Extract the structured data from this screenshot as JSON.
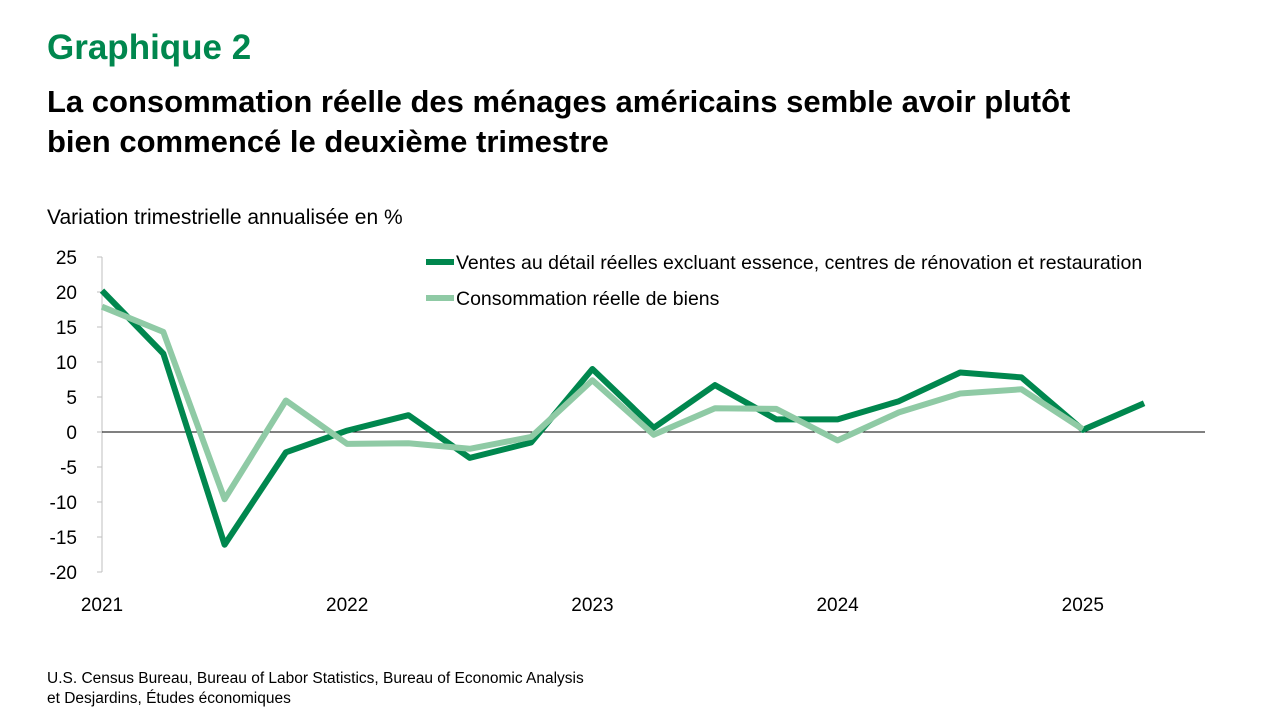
{
  "header": {
    "chart_label": "Graphique 2",
    "title_line1": "La consommation réelle des ménages américains semble avoir plutôt",
    "title_line2": "bien commencé le deuxième trimestre"
  },
  "source": {
    "line1": "U.S. Census Bureau, Bureau of Labor Statistics, Bureau of Economic Analysis",
    "line2": "et Desjardins, Études économiques"
  },
  "colors": {
    "brand": "#00874e",
    "series_dark": "#00874e",
    "series_light": "#8fcaa5",
    "axis": "#000000",
    "axis_gray": "#bfbfbf"
  },
  "chart_data": {
    "type": "line",
    "ylabel": "Variation trimestrielle annualisée en %",
    "xlabel": "",
    "ylim": [
      -20,
      25
    ],
    "yticks": [
      25,
      20,
      15,
      10,
      5,
      0,
      -5,
      -10,
      -15,
      -20
    ],
    "xticks": [
      "2021",
      "2022",
      "2023",
      "2024",
      "2025"
    ],
    "x": [
      "2021 T1",
      "2021 T2",
      "2021 T3",
      "2021 T4",
      "2022 T1",
      "2022 T2",
      "2022 T3",
      "2022 T4",
      "2023 T1",
      "2023 T2",
      "2023 T3",
      "2023 T4",
      "2024 T1",
      "2024 T2",
      "2024 T3",
      "2024 T4",
      "2025 T1",
      "2025 T2"
    ],
    "grid": false,
    "legend_position": "top-right",
    "series": [
      {
        "name": "Ventes au détail réelles excluant essence, centres de rénovation et restauration",
        "color": "#00874e",
        "values": [
          20.2,
          11.2,
          -16.1,
          -2.9,
          0.2,
          2.4,
          -3.7,
          -1.5,
          9.0,
          0.6,
          6.7,
          1.8,
          1.8,
          4.4,
          8.5,
          7.8,
          0.3,
          4.1
        ]
      },
      {
        "name": "Consommation réelle de biens",
        "color": "#8fcaa5",
        "values": [
          17.9,
          14.3,
          -9.6,
          4.5,
          -1.7,
          -1.6,
          -2.4,
          -0.7,
          7.4,
          -0.4,
          3.4,
          3.3,
          -1.2,
          2.8,
          5.5,
          6.1,
          0.4,
          null
        ]
      }
    ]
  }
}
